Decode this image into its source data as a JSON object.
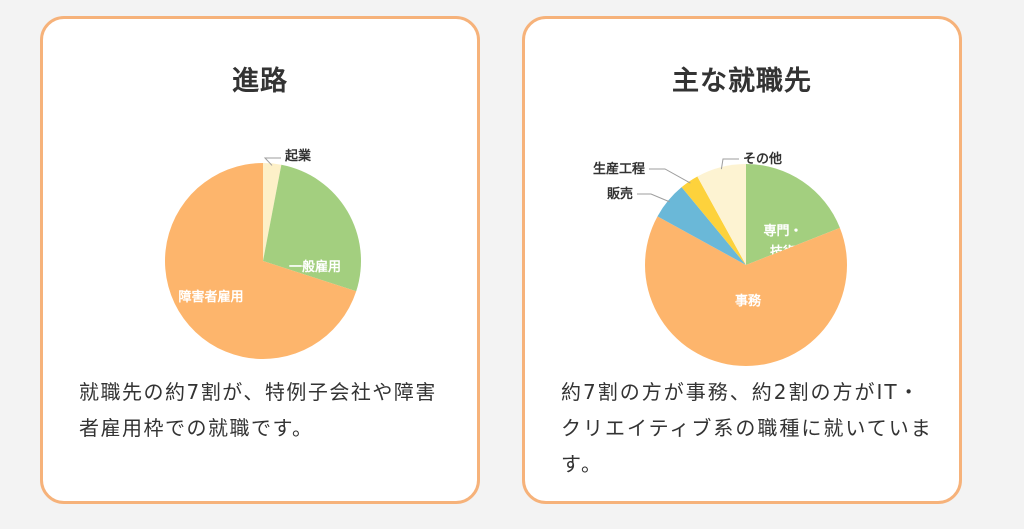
{
  "cards": [
    {
      "title": "進路",
      "description": "就職先の約7割が、特例子会社や障害者雇用枠での就職です。",
      "chart_data": {
        "type": "pie",
        "title": "進路",
        "start_angle_deg": 0,
        "slices": [
          {
            "label": "起業",
            "value": 3,
            "color": "#fdf0c8",
            "label_placement": "outside",
            "label_side": "right"
          },
          {
            "label": "一般雇用",
            "value": 27,
            "color": "#a3cf7f",
            "label_placement": "inside"
          },
          {
            "label": "障害者雇用",
            "value": 70,
            "color": "#fdb56c",
            "label_placement": "inside"
          }
        ]
      }
    },
    {
      "title": "主な就職先",
      "description": "約7割の方が事務、約2割の方がIT・クリエイティブ系の職種に就いています。",
      "chart_data": {
        "type": "pie",
        "title": "主な就職先",
        "start_angle_deg": 0,
        "slices": [
          {
            "label": "専門・技術",
            "label_lines": [
              "専門・",
              "技術"
            ],
            "value": 19,
            "color": "#a3cf7f",
            "label_placement": "inside"
          },
          {
            "label": "事務",
            "value": 64,
            "color": "#fdb56c",
            "label_placement": "inside"
          },
          {
            "label": "販売",
            "value": 6,
            "color": "#6ab8d8",
            "label_placement": "outside",
            "label_side": "left"
          },
          {
            "label": "生産工程",
            "value": 3,
            "color": "#fdd23c",
            "label_placement": "outside",
            "label_side": "left"
          },
          {
            "label": "その他",
            "value": 8,
            "color": "#fdf3d2",
            "label_placement": "outside",
            "label_side": "right"
          }
        ]
      }
    }
  ]
}
